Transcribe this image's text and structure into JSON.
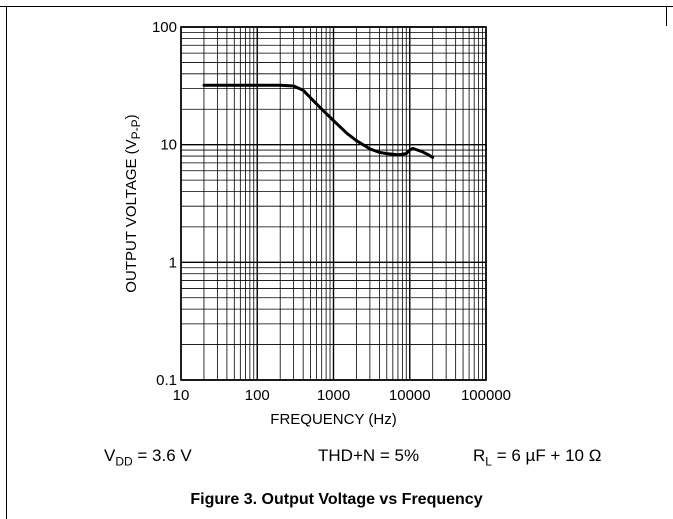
{
  "chart_data": {
    "type": "line",
    "xlabel": "FREQUENCY (Hz)",
    "ylabel": "OUTPUT VOLTAGE (V",
    "ylabel_sub": "P-P",
    "ylabel_close": ")",
    "x_scale": "log",
    "y_scale": "log",
    "xlim": [
      10,
      100000
    ],
    "ylim": [
      0.1,
      100
    ],
    "x_ticks": [
      10,
      100,
      1000,
      10000,
      100000
    ],
    "x_tick_labels": [
      "10",
      "100",
      "1000",
      "10000",
      "100000"
    ],
    "y_ticks": [
      0.1,
      1,
      10,
      100
    ],
    "y_tick_labels": [
      "0.1",
      "1",
      "10",
      "100"
    ],
    "grid": true,
    "series": [
      {
        "x": [
          20,
          50,
          100,
          200,
          300,
          400,
          500,
          700,
          1000,
          1500,
          2000,
          3000,
          4000,
          5000,
          7000,
          9000,
          10000,
          11000,
          12000,
          14000,
          17000,
          20000
        ],
        "y": [
          32,
          32,
          32,
          32,
          31.5,
          29,
          25,
          20,
          16,
          12.5,
          10.8,
          9.2,
          8.6,
          8.4,
          8.2,
          8.4,
          9,
          9.3,
          9.1,
          8.8,
          8.3,
          7.8
        ]
      }
    ]
  },
  "conditions": {
    "vdd_prefix": "V",
    "vdd_sub": "DD",
    "vdd_suffix": " = 3.6 V",
    "thd": "THD+N = 5%",
    "rl_prefix": "R",
    "rl_sub": "L",
    "rl_suffix": " = 6 µF + 10 Ω"
  },
  "caption": "Figure 3. Output Voltage vs Frequency"
}
